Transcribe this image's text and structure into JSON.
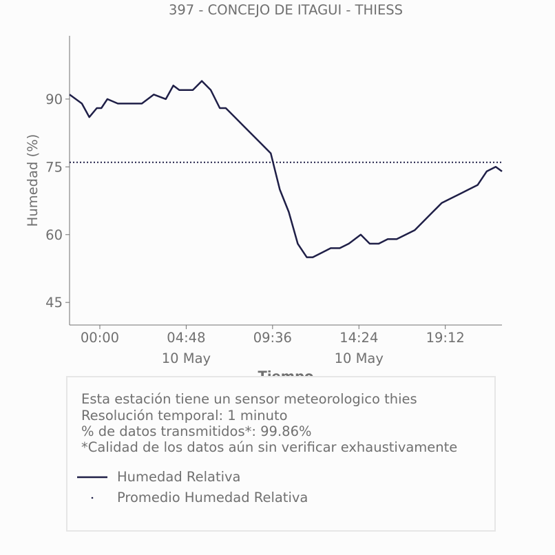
{
  "chart_data": {
    "type": "line",
    "title": "397 - CONCEJO DE ITAGUI - THIESS",
    "xlabel": "Tiempo",
    "ylabel": "Humedad (%)",
    "x_ticks": [
      "00:00",
      "04:48",
      "09:36",
      "14:24",
      "19:12"
    ],
    "x_date_labels": [
      "10 May",
      "",
      "10 May",
      "",
      ""
    ],
    "y_ticks": [
      45,
      60,
      75,
      90
    ],
    "ylim": [
      40,
      104
    ],
    "xlim": [
      "2024-05-09 22:19",
      "2024-05-10 22:21"
    ],
    "x_date_note_hidden": "",
    "series": [
      {
        "name": "Humedad Relativa",
        "color": "#1f1f47",
        "x": [
          "2024-05-09 22:19",
          "2024-05-09 23:00",
          "2024-05-09 23:25",
          "2024-05-09 23:50",
          "2024-05-10 00:05",
          "2024-05-10 00:25",
          "2024-05-10 01:00",
          "2024-05-10 01:40",
          "2024-05-10 02:20",
          "2024-05-10 03:00",
          "2024-05-10 03:40",
          "2024-05-10 04:05",
          "2024-05-10 04:25",
          "2024-05-10 05:10",
          "2024-05-10 05:40",
          "2024-05-10 06:10",
          "2024-05-10 06:40",
          "2024-05-10 07:00",
          "2024-05-10 07:30",
          "2024-05-10 08:00",
          "2024-05-10 08:30",
          "2024-05-10 09:00",
          "2024-05-10 09:30",
          "2024-05-10 10:00",
          "2024-05-10 10:30",
          "2024-05-10 11:00",
          "2024-05-10 11:30",
          "2024-05-10 11:50",
          "2024-05-10 12:20",
          "2024-05-10 12:50",
          "2024-05-10 13:20",
          "2024-05-10 13:50",
          "2024-05-10 14:30",
          "2024-05-10 15:00",
          "2024-05-10 15:30",
          "2024-05-10 16:00",
          "2024-05-10 16:30",
          "2024-05-10 17:00",
          "2024-05-10 17:30",
          "2024-05-10 18:00",
          "2024-05-10 18:30",
          "2024-05-10 19:00",
          "2024-05-10 19:30",
          "2024-05-10 20:00",
          "2024-05-10 20:30",
          "2024-05-10 21:00",
          "2024-05-10 21:30",
          "2024-05-10 22:00",
          "2024-05-10 22:21"
        ],
        "values": [
          91,
          89,
          86,
          88,
          88,
          90,
          89,
          89,
          89,
          91,
          90,
          93,
          92,
          92,
          94,
          92,
          88,
          88,
          86,
          84,
          82,
          80,
          78,
          70,
          65,
          58,
          55,
          55,
          56,
          57,
          57,
          58,
          60,
          58,
          58,
          59,
          59,
          60,
          61,
          63,
          65,
          67,
          68,
          69,
          70,
          71,
          74,
          75,
          74
        ]
      }
    ],
    "reference_lines": [
      {
        "name": "Promedio Humedad Relativa",
        "y": 76,
        "style": "dotted",
        "color": "#1f1f47"
      }
    ],
    "grid": false,
    "legend_position": "bottom"
  },
  "info": {
    "lines": [
      "Esta estación tiene un sensor meteorologico thies",
      "Resolución temporal: 1 minuto",
      "% de datos transmitidos*: 99.86%",
      "*Calidad de los datos aún sin verificar exhaustivamente"
    ]
  },
  "legend": [
    {
      "label": "Humedad Relativa",
      "marker": "line"
    },
    {
      "label": "Promedio Humedad Relativa",
      "marker": "dot"
    }
  ],
  "colors": {
    "text": "#707070",
    "series": "#1f1f47",
    "axis": "#707070",
    "box_border": "#e6e6e6"
  }
}
